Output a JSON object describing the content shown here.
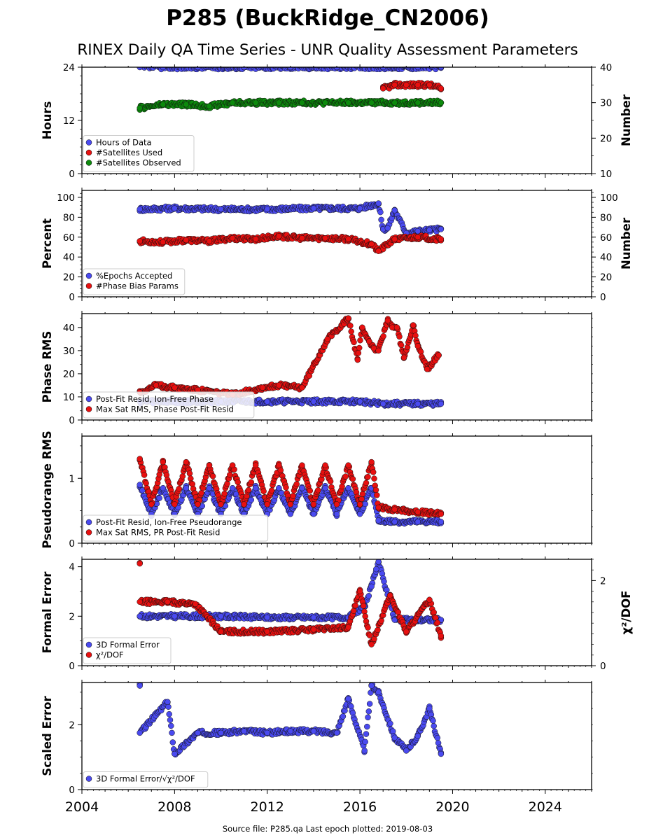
{
  "figure": {
    "title": "P285 (BuckRidge_CN2006)",
    "subtitle": "RINEX Daily QA Time Series - UNR Quality Assessment Parameters",
    "footer": "Source file: P285.qa Last epoch plotted: 2019-08-03",
    "x_ticks": [
      "2004",
      "2008",
      "2012",
      "2016",
      "2020",
      "2024"
    ]
  },
  "colors": {
    "blue": "#4a4af0",
    "red": "#e81010",
    "green": "#0c8a0c",
    "edge": "#111111"
  },
  "chart_data": [
    {
      "type": "scatter",
      "ylabel": "Hours",
      "ylabel_right": "Number",
      "ylim": [
        0,
        24
      ],
      "ylim_right": [
        10,
        40
      ],
      "yticks": [
        "0",
        "12",
        "24"
      ],
      "yticks_right": [
        "10",
        "20",
        "30",
        "40"
      ],
      "legend": [
        "Hours of Data",
        "#Satellites Used",
        "#Satellites Observed"
      ],
      "legend_position": "lower-left",
      "series": [
        {
          "name": "Hours of Data",
          "axis": "left",
          "x": [
            2006.5,
            2007.5,
            2009.0,
            2011.0,
            2013.0,
            2015.0,
            2017.0,
            2018.5,
            2019.5
          ],
          "y": [
            24,
            24,
            24,
            24,
            24,
            24,
            24,
            24,
            24
          ]
        },
        {
          "name": "#Satellites Used",
          "axis": "right",
          "x": [
            2017.0,
            2017.5,
            2018.0,
            2018.5,
            2019.0,
            2019.5
          ],
          "y": [
            34,
            35,
            35,
            35,
            35,
            34
          ]
        },
        {
          "name": "#Satellites Observed",
          "axis": "right",
          "x": [
            2006.5,
            2007.5,
            2008.5,
            2009.5,
            2010.5,
            2011.5,
            2012.5,
            2013.5,
            2014.5,
            2015.5,
            2016.5,
            2017.5,
            2018.5,
            2019.5
          ],
          "y": [
            28.5,
            29.5,
            29.5,
            29,
            30,
            30,
            30,
            30,
            30,
            30,
            30,
            30,
            30,
            30
          ]
        }
      ]
    },
    {
      "type": "scatter",
      "ylabel": "Percent",
      "ylabel_right": "Number",
      "ylim": [
        0,
        107
      ],
      "ylim_right": [
        0,
        107
      ],
      "yticks": [
        "0",
        "20",
        "40",
        "60",
        "80",
        "100"
      ],
      "yticks_right": [
        "0",
        "20",
        "40",
        "60",
        "80",
        "100"
      ],
      "legend": [
        "%Epochs Accepted",
        "#Phase Bias Params"
      ],
      "legend_position": "lower-left",
      "series": [
        {
          "name": "%Epochs Accepted",
          "axis": "left",
          "x": [
            2006.5,
            2008.0,
            2010.0,
            2012.0,
            2014.0,
            2016.0,
            2016.8,
            2017.0,
            2017.2,
            2017.5,
            2018.0,
            2018.5,
            2019.0,
            2019.5
          ],
          "y": [
            88,
            89,
            88,
            88,
            89,
            89,
            94,
            68,
            69,
            87,
            64,
            66,
            67,
            68
          ]
        },
        {
          "name": "#Phase Bias Params",
          "axis": "right",
          "x": [
            2006.5,
            2007.5,
            2008.5,
            2009.5,
            2010.5,
            2011.5,
            2012.5,
            2013.5,
            2014.5,
            2015.5,
            2016.5,
            2016.8,
            2017.5,
            2018.5,
            2019.5
          ],
          "y": [
            56,
            55,
            57,
            56,
            59,
            58,
            61,
            59,
            59,
            58,
            53,
            46,
            58,
            60,
            58
          ]
        }
      ]
    },
    {
      "type": "scatter",
      "ylabel": "Phase RMS",
      "ylim": [
        0,
        46
      ],
      "yticks": [
        "0",
        "10",
        "20",
        "30",
        "40"
      ],
      "legend": [
        "Post-Fit Resid, Ion-Free Phase",
        "Max Sat RMS, Phase Post-Fit Resid"
      ],
      "legend_position": "lower-left",
      "series": [
        {
          "name": "Post-Fit Resid, Ion-Free Phase",
          "x": [
            2006.5,
            2008.0,
            2010.0,
            2012.0,
            2014.0,
            2016.0,
            2017.0,
            2018.5,
            2019.5
          ],
          "y": [
            8,
            8,
            8,
            8,
            8,
            8,
            7,
            7,
            7
          ]
        },
        {
          "name": "Max Sat RMS, Phase Post-Fit Resid",
          "x": [
            2006.5,
            2007.2,
            2008.0,
            2009.0,
            2010.5,
            2011.8,
            2012.5,
            2013.5,
            2014.6,
            2015.5,
            2015.9,
            2016.1,
            2016.4,
            2016.6,
            2016.8,
            2017.2,
            2017.4,
            2017.6,
            2017.9,
            2018.3,
            2018.5,
            2018.9,
            2019.4
          ],
          "y": [
            12,
            15,
            14,
            13,
            11,
            14,
            15,
            14,
            35,
            44,
            26,
            40,
            34,
            31,
            30,
            43,
            40,
            40,
            27,
            41,
            32,
            22,
            28
          ]
        }
      ]
    },
    {
      "type": "scatter",
      "ylabel": "Pseudorange RMS",
      "ylim": [
        0,
        1.65
      ],
      "yticks": [
        "0",
        "1"
      ],
      "legend": [
        "Post-Fit Resid, Ion-Free Pseudorange",
        "Max Sat RMS, PR Post-Fit Resid"
      ],
      "legend_position": "lower-left",
      "series": [
        {
          "name": "Post-Fit Resid, Ion-Free Pseudorange",
          "x": [
            2006.5,
            2007.0,
            2007.5,
            2008.0,
            2008.5,
            2009.0,
            2009.5,
            2010.0,
            2010.5,
            2011.0,
            2011.5,
            2012.0,
            2012.5,
            2013.0,
            2013.5,
            2014.0,
            2014.5,
            2015.0,
            2015.5,
            2016.0,
            2016.5,
            2016.8,
            2017.5,
            2018.5,
            2019.5
          ],
          "y": [
            0.9,
            0.45,
            0.85,
            0.45,
            0.85,
            0.45,
            0.85,
            0.45,
            0.85,
            0.45,
            0.85,
            0.45,
            0.85,
            0.45,
            0.85,
            0.45,
            0.85,
            0.45,
            0.85,
            0.45,
            0.85,
            0.35,
            0.33,
            0.33,
            0.33
          ]
        },
        {
          "name": "Max Sat RMS, PR Post-Fit Resid",
          "x": [
            2006.5,
            2007.0,
            2007.5,
            2008.0,
            2008.5,
            2009.0,
            2009.5,
            2010.0,
            2010.5,
            2011.0,
            2011.5,
            2012.0,
            2012.5,
            2013.0,
            2013.5,
            2014.0,
            2014.5,
            2015.0,
            2015.5,
            2016.0,
            2016.5,
            2016.8,
            2017.5,
            2018.5,
            2019.5
          ],
          "y": [
            1.3,
            0.6,
            1.25,
            0.6,
            1.25,
            0.6,
            1.2,
            0.6,
            1.2,
            0.6,
            1.2,
            0.6,
            1.2,
            0.6,
            1.2,
            0.6,
            1.2,
            0.6,
            1.2,
            0.6,
            1.25,
            0.55,
            0.52,
            0.48,
            0.45
          ]
        }
      ]
    },
    {
      "type": "scatter",
      "ylabel": "Formal Error",
      "ylabel_right": "χ²/DOF",
      "ylim": [
        0,
        4.3
      ],
      "ylim_right": [
        0,
        2.5
      ],
      "yticks": [
        "0",
        "2",
        "4"
      ],
      "yticks_right": [
        "0",
        "2"
      ],
      "legend": [
        "3D Formal Error",
        "χ²/DOF"
      ],
      "legend_position": "lower-left",
      "series": [
        {
          "name": "3D Formal Error",
          "axis": "left",
          "x": [
            2006.5,
            2008.0,
            2010.0,
            2012.0,
            2014.0,
            2015.5,
            2016.2,
            2016.5,
            2016.7,
            2016.8,
            2017.5,
            2018.5,
            2019.5
          ],
          "y": [
            2.0,
            2.0,
            2.0,
            1.95,
            1.95,
            1.95,
            2.4,
            3.2,
            3.9,
            4.2,
            1.85,
            1.85,
            1.85
          ]
        },
        {
          "name": "χ²/DOF",
          "axis": "right",
          "x": [
            2006.5,
            2006.5,
            2007.7,
            2008.9,
            2010.0,
            2012.0,
            2014.0,
            2015.5,
            2016.0,
            2016.5,
            2017.3,
            2018.0,
            2019.0,
            2019.5
          ],
          "y": [
            2.4,
            1.5,
            1.5,
            1.45,
            0.8,
            0.8,
            0.85,
            0.9,
            1.75,
            0.5,
            1.65,
            0.8,
            1.55,
            0.7
          ]
        }
      ]
    },
    {
      "type": "scatter",
      "ylabel": "Scaled Error",
      "ylim": [
        0,
        3.3
      ],
      "yticks": [
        "0",
        "2"
      ],
      "legend": [
        "3D Formal Error/√χ²/DOF"
      ],
      "legend_position": "lower-left",
      "series": [
        {
          "name": "3D Formal Error/√χ²/DOF",
          "x": [
            2006.5,
            2006.5,
            2007.7,
            2008.0,
            2009.0,
            2010.0,
            2011.0,
            2012.0,
            2013.0,
            2014.0,
            2015.0,
            2015.5,
            2016.2,
            2016.5,
            2016.8,
            2017.5,
            2018.0,
            2018.5,
            2019.0,
            2019.5
          ],
          "y": [
            3.2,
            1.75,
            2.7,
            1.1,
            1.75,
            1.75,
            1.8,
            1.75,
            1.8,
            1.8,
            1.75,
            2.8,
            1.2,
            3.2,
            3.0,
            1.6,
            1.2,
            1.65,
            2.5,
            1.1
          ]
        }
      ]
    }
  ]
}
